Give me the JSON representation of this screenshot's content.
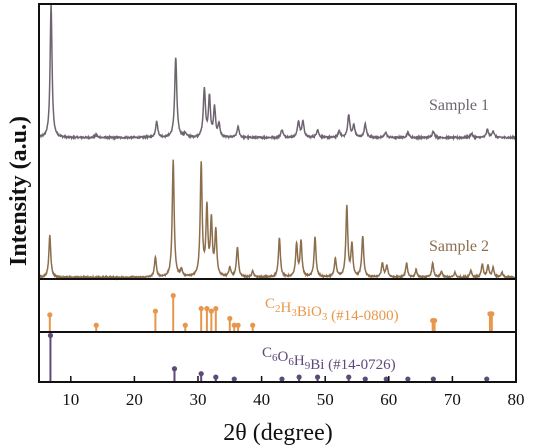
{
  "chart_data": {
    "type": "line",
    "xlabel": "2θ (degree)",
    "ylabel": "Intensity (a.u.)",
    "xlim": [
      5,
      80
    ],
    "xticks": [
      10,
      20,
      30,
      40,
      50,
      60,
      70,
      80
    ],
    "grid": false,
    "series": [
      {
        "name": "Sample 1",
        "color": "#6e6470",
        "baseline": 0.04,
        "noise": 0.012,
        "peaks": [
          {
            "x": 6.9,
            "y": 1.0,
            "w": 0.18
          },
          {
            "x": 14.0,
            "y": 0.02,
            "w": 0.2
          },
          {
            "x": 23.5,
            "y": 0.12,
            "w": 0.2
          },
          {
            "x": 26.5,
            "y": 0.6,
            "w": 0.2
          },
          {
            "x": 28.0,
            "y": 0.03,
            "w": 0.2
          },
          {
            "x": 31.0,
            "y": 0.36,
            "w": 0.2
          },
          {
            "x": 31.8,
            "y": 0.3,
            "w": 0.18
          },
          {
            "x": 32.6,
            "y": 0.22,
            "w": 0.18
          },
          {
            "x": 33.3,
            "y": 0.1,
            "w": 0.18
          },
          {
            "x": 36.3,
            "y": 0.08,
            "w": 0.2
          },
          {
            "x": 43.2,
            "y": 0.06,
            "w": 0.2
          },
          {
            "x": 45.8,
            "y": 0.12,
            "w": 0.2
          },
          {
            "x": 46.5,
            "y": 0.12,
            "w": 0.2
          },
          {
            "x": 48.8,
            "y": 0.06,
            "w": 0.2
          },
          {
            "x": 52.2,
            "y": 0.05,
            "w": 0.2
          },
          {
            "x": 53.7,
            "y": 0.17,
            "w": 0.2
          },
          {
            "x": 54.5,
            "y": 0.09,
            "w": 0.2
          },
          {
            "x": 56.3,
            "y": 0.1,
            "w": 0.2
          },
          {
            "x": 59.5,
            "y": 0.04,
            "w": 0.2
          },
          {
            "x": 63.0,
            "y": 0.04,
            "w": 0.2
          },
          {
            "x": 67.0,
            "y": 0.05,
            "w": 0.2
          },
          {
            "x": 73.0,
            "y": 0.03,
            "w": 0.2
          },
          {
            "x": 75.5,
            "y": 0.06,
            "w": 0.2
          },
          {
            "x": 76.4,
            "y": 0.05,
            "w": 0.2
          }
        ]
      },
      {
        "name": "Sample 2",
        "color": "#8c6e4c",
        "baseline": 0.03,
        "noise": 0.012,
        "peaks": [
          {
            "x": 6.7,
            "y": 0.36,
            "w": 0.18
          },
          {
            "x": 23.3,
            "y": 0.17,
            "w": 0.18
          },
          {
            "x": 26.1,
            "y": 1.0,
            "w": 0.18
          },
          {
            "x": 27.4,
            "y": 0.06,
            "w": 0.18
          },
          {
            "x": 30.5,
            "y": 0.96,
            "w": 0.18
          },
          {
            "x": 31.4,
            "y": 0.57,
            "w": 0.18
          },
          {
            "x": 32.1,
            "y": 0.47,
            "w": 0.18
          },
          {
            "x": 32.8,
            "y": 0.38,
            "w": 0.18
          },
          {
            "x": 35.0,
            "y": 0.08,
            "w": 0.18
          },
          {
            "x": 36.2,
            "y": 0.26,
            "w": 0.18
          },
          {
            "x": 38.6,
            "y": 0.05,
            "w": 0.18
          },
          {
            "x": 42.8,
            "y": 0.34,
            "w": 0.18
          },
          {
            "x": 45.5,
            "y": 0.28,
            "w": 0.18
          },
          {
            "x": 46.2,
            "y": 0.3,
            "w": 0.18
          },
          {
            "x": 48.4,
            "y": 0.34,
            "w": 0.18
          },
          {
            "x": 51.6,
            "y": 0.16,
            "w": 0.18
          },
          {
            "x": 53.4,
            "y": 0.6,
            "w": 0.18
          },
          {
            "x": 54.2,
            "y": 0.27,
            "w": 0.18
          },
          {
            "x": 55.9,
            "y": 0.35,
            "w": 0.18
          },
          {
            "x": 59.0,
            "y": 0.12,
            "w": 0.18
          },
          {
            "x": 59.7,
            "y": 0.1,
            "w": 0.18
          },
          {
            "x": 62.8,
            "y": 0.12,
            "w": 0.18
          },
          {
            "x": 64.3,
            "y": 0.06,
            "w": 0.18
          },
          {
            "x": 66.9,
            "y": 0.12,
            "w": 0.18
          },
          {
            "x": 68.3,
            "y": 0.05,
            "w": 0.18
          },
          {
            "x": 70.4,
            "y": 0.04,
            "w": 0.18
          },
          {
            "x": 72.9,
            "y": 0.06,
            "w": 0.18
          },
          {
            "x": 74.7,
            "y": 0.11,
            "w": 0.18
          },
          {
            "x": 75.6,
            "y": 0.1,
            "w": 0.18
          },
          {
            "x": 76.4,
            "y": 0.08,
            "w": 0.18
          },
          {
            "x": 77.8,
            "y": 0.04,
            "w": 0.18
          }
        ]
      }
    ],
    "references": [
      {
        "name": "C2H3BiO3 (#14-0800)",
        "label_parts": [
          {
            "t": "C"
          },
          {
            "t": "2",
            "sub": true
          },
          {
            "t": "H"
          },
          {
            "t": "3",
            "sub": true
          },
          {
            "t": "BiO"
          },
          {
            "t": "3",
            "sub": true
          },
          {
            "t": " (#14-0800)"
          }
        ],
        "color": "#e8964c",
        "sticks": [
          {
            "x": 6.7,
            "h": 0.33
          },
          {
            "x": 14.0,
            "h": 0.13
          },
          {
            "x": 23.3,
            "h": 0.4
          },
          {
            "x": 26.1,
            "h": 0.7
          },
          {
            "x": 28.0,
            "h": 0.13
          },
          {
            "x": 30.5,
            "h": 0.45
          },
          {
            "x": 31.4,
            "h": 0.45
          },
          {
            "x": 32.1,
            "h": 0.4
          },
          {
            "x": 32.8,
            "h": 0.45
          },
          {
            "x": 35.0,
            "h": 0.26
          },
          {
            "x": 35.7,
            "h": 0.13
          },
          {
            "x": 36.3,
            "h": 0.13
          },
          {
            "x": 38.6,
            "h": 0.13
          },
          {
            "x": 66.9,
            "h": 0.22
          },
          {
            "x": 67.2,
            "h": 0.22
          },
          {
            "x": 75.9,
            "h": 0.35
          },
          {
            "x": 76.2,
            "h": 0.35
          }
        ]
      },
      {
        "name": "C6O6H9Bi (#14-0726)",
        "label_parts": [
          {
            "t": "C"
          },
          {
            "t": "6",
            "sub": true
          },
          {
            "t": "O"
          },
          {
            "t": "6",
            "sub": true
          },
          {
            "t": "H"
          },
          {
            "t": "9",
            "sub": true
          },
          {
            "t": "Bi (#14-0726)"
          }
        ],
        "color": "#5c4a78",
        "sticks": [
          {
            "x": 6.8,
            "h": 0.95
          },
          {
            "x": 26.3,
            "h": 0.27
          },
          {
            "x": 30.5,
            "h": 0.17
          },
          {
            "x": 32.8,
            "h": 0.1
          },
          {
            "x": 35.7,
            "h": 0.06
          },
          {
            "x": 43.2,
            "h": 0.06
          },
          {
            "x": 45.9,
            "h": 0.1
          },
          {
            "x": 48.8,
            "h": 0.1
          },
          {
            "x": 53.7,
            "h": 0.1
          },
          {
            "x": 56.3,
            "h": 0.06
          },
          {
            "x": 59.6,
            "h": 0.06
          },
          {
            "x": 63.0,
            "h": 0.06
          },
          {
            "x": 67.0,
            "h": 0.06
          },
          {
            "x": 75.4,
            "h": 0.06
          }
        ]
      }
    ]
  }
}
